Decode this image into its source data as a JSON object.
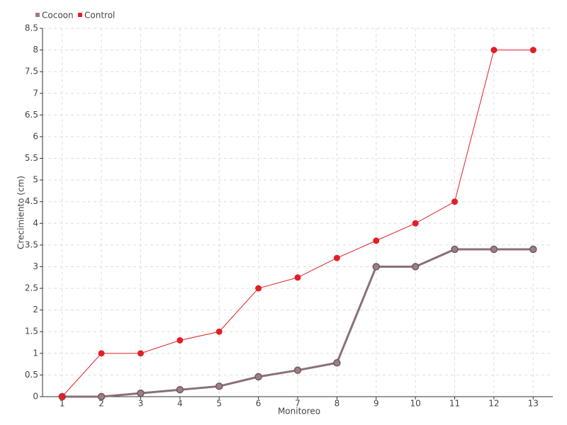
{
  "chart_data": {
    "type": "line",
    "x_label": "Monitoreo",
    "y_label": "Crecimiento (cm)",
    "categories": [
      "1",
      "2",
      "3",
      "4",
      "5",
      "6",
      "7",
      "8",
      "9",
      "10",
      "11",
      "12",
      "13"
    ],
    "series": [
      {
        "name": "Cocoon",
        "color": "#9e7e86",
        "values": [
          0,
          0,
          0.08,
          0.16,
          0.24,
          0.46,
          0.61,
          0.78,
          3.0,
          3.0,
          3.4,
          3.4,
          3.4
        ]
      },
      {
        "name": "Control",
        "color": "#e02027",
        "values": [
          0,
          1,
          1,
          1.3,
          1.5,
          2.5,
          2.75,
          3.2,
          3.6,
          4,
          4.5,
          8,
          8
        ]
      }
    ],
    "ylim": [
      0,
      8.5
    ],
    "yticks": [
      0,
      0.5,
      1,
      1.5,
      2,
      2.5,
      3,
      3.5,
      4,
      4.5,
      5,
      5.5,
      6,
      6.5,
      7,
      7.5,
      8,
      8.5
    ],
    "grid": true
  }
}
